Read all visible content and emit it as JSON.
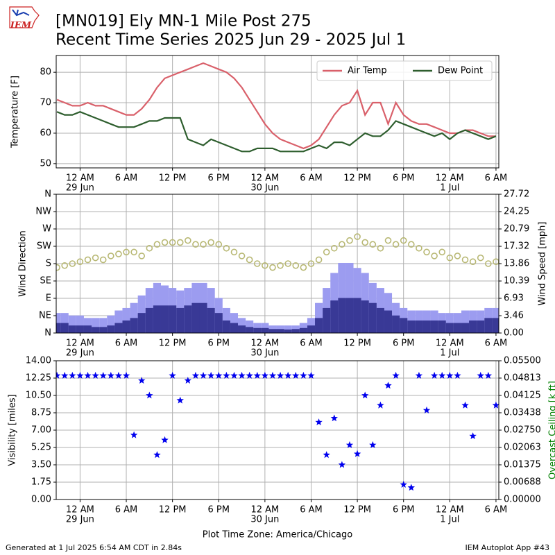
{
  "logo": "IEM",
  "title": "[MN019] Ely MN-1 Mile Post 275",
  "subtitle": "Recent Time Series 2025 Jun 29 - 2025 Jul 1",
  "footer_left": "Generated at 1 Jul 2025 6:54 AM CDT in 2.84s",
  "footer_right": "IEM Autoplot App #43",
  "chart_data": [
    {
      "type": "line",
      "ylabel": "Temperature [F]",
      "grid": true,
      "legend": "upper right",
      "xlim": [
        "2025-06-28 20:54",
        "2025-07-01 06:22"
      ],
      "xticks": [
        {
          "value": "2025-06-29 00:00",
          "label": "12 AM",
          "sublabel": "29 Jun"
        },
        {
          "value": "2025-06-29 06:00",
          "label": "6 AM"
        },
        {
          "value": "2025-06-29 12:00",
          "label": "12 PM"
        },
        {
          "value": "2025-06-29 18:00",
          "label": "6 PM"
        },
        {
          "value": "2025-06-30 00:00",
          "label": "12 AM",
          "sublabel": "30 Jun"
        },
        {
          "value": "2025-06-30 06:00",
          "label": "6 AM"
        },
        {
          "value": "2025-06-30 12:00",
          "label": "12 PM"
        },
        {
          "value": "2025-06-30 18:00",
          "label": "6 PM"
        },
        {
          "value": "2025-07-01 00:00",
          "label": "12 AM",
          "sublabel": "1 Jul"
        },
        {
          "value": "2025-07-01 06:00",
          "label": "6 AM"
        }
      ],
      "ylim": [
        48.6,
        85.5
      ],
      "yticks": [
        50,
        60,
        70,
        80
      ],
      "x": [
        "2025-06-28 21:00",
        "2025-06-28 22:00",
        "2025-06-28 23:00",
        "2025-06-29 00:00",
        "2025-06-29 01:00",
        "2025-06-29 02:00",
        "2025-06-29 03:00",
        "2025-06-29 04:00",
        "2025-06-29 05:00",
        "2025-06-29 06:00",
        "2025-06-29 07:00",
        "2025-06-29 08:00",
        "2025-06-29 09:00",
        "2025-06-29 10:00",
        "2025-06-29 11:00",
        "2025-06-29 12:00",
        "2025-06-29 13:00",
        "2025-06-29 14:00",
        "2025-06-29 15:00",
        "2025-06-29 16:00",
        "2025-06-29 17:00",
        "2025-06-29 18:00",
        "2025-06-29 19:00",
        "2025-06-29 20:00",
        "2025-06-29 21:00",
        "2025-06-29 22:00",
        "2025-06-29 23:00",
        "2025-06-30 00:00",
        "2025-06-30 01:00",
        "2025-06-30 02:00",
        "2025-06-30 03:00",
        "2025-06-30 04:00",
        "2025-06-30 05:00",
        "2025-06-30 06:00",
        "2025-06-30 07:00",
        "2025-06-30 08:00",
        "2025-06-30 09:00",
        "2025-06-30 10:00",
        "2025-06-30 11:00",
        "2025-06-30 12:00",
        "2025-06-30 13:00",
        "2025-06-30 14:00",
        "2025-06-30 15:00",
        "2025-06-30 16:00",
        "2025-06-30 17:00",
        "2025-06-30 18:00",
        "2025-06-30 19:00",
        "2025-06-30 20:00",
        "2025-06-30 21:00",
        "2025-06-30 22:00",
        "2025-06-30 23:00",
        "2025-07-01 00:00",
        "2025-07-01 01:00",
        "2025-07-01 02:00",
        "2025-07-01 03:00",
        "2025-07-01 04:00",
        "2025-07-01 05:00",
        "2025-07-01 06:00"
      ],
      "series": [
        {
          "name": "Air Temp",
          "color": "#d9606a",
          "values": [
            71,
            70,
            69,
            69,
            70,
            69,
            69,
            68,
            67,
            66,
            66,
            68,
            71,
            75,
            78,
            79,
            80,
            81,
            82,
            83,
            82,
            81,
            80,
            78,
            75,
            71,
            67,
            63,
            60,
            58,
            57,
            56,
            55,
            56,
            58,
            62,
            66,
            69,
            70,
            74,
            66,
            70,
            70,
            63,
            70,
            66,
            64,
            63,
            63,
            62,
            61,
            60,
            60,
            61,
            61,
            60,
            59,
            59
          ]
        },
        {
          "name": "Dew Point",
          "color": "#2e5e2e",
          "values": [
            67,
            66,
            66,
            67,
            66,
            65,
            64,
            63,
            62,
            62,
            62,
            63,
            64,
            64,
            65,
            65,
            65,
            58,
            57,
            56,
            58,
            57,
            56,
            55,
            54,
            54,
            55,
            55,
            55,
            54,
            54,
            54,
            54,
            55,
            56,
            55,
            57,
            57,
            56,
            58,
            60,
            59,
            59,
            61,
            64,
            63,
            62,
            61,
            60,
            59,
            60,
            58,
            60,
            61,
            60,
            59,
            58,
            59
          ]
        }
      ]
    },
    {
      "type": "wind",
      "ylabel": "Wind Direction",
      "y2label": "Wind Speed [mph]",
      "grid": true,
      "xlim": [
        "2025-06-28 20:54",
        "2025-07-01 06:22"
      ],
      "xticks": [
        {
          "value": "2025-06-29 00:00",
          "label": "12 AM",
          "sublabel": "29 Jun"
        },
        {
          "value": "2025-06-29 06:00",
          "label": "6 AM"
        },
        {
          "value": "2025-06-29 12:00",
          "label": "12 PM"
        },
        {
          "value": "2025-06-29 18:00",
          "label": "6 PM"
        },
        {
          "value": "2025-06-30 00:00",
          "label": "12 AM",
          "sublabel": "30 Jun"
        },
        {
          "value": "2025-06-30 06:00",
          "label": "6 AM"
        },
        {
          "value": "2025-06-30 12:00",
          "label": "12 PM"
        },
        {
          "value": "2025-06-30 18:00",
          "label": "6 PM"
        },
        {
          "value": "2025-07-01 00:00",
          "label": "12 AM",
          "sublabel": "1 Jul"
        },
        {
          "value": "2025-07-01 06:00",
          "label": "6 AM"
        }
      ],
      "ylim": [
        0,
        360
      ],
      "yticks": [
        {
          "value": 0,
          "label": "N"
        },
        {
          "value": 45,
          "label": "NE"
        },
        {
          "value": 90,
          "label": "E"
        },
        {
          "value": 135,
          "label": "SE"
        },
        {
          "value": 180,
          "label": "S"
        },
        {
          "value": 225,
          "label": "SW"
        },
        {
          "value": 270,
          "label": "W"
        },
        {
          "value": 315,
          "label": "NW"
        },
        {
          "value": 360,
          "label": "N"
        }
      ],
      "y2lim": [
        0,
        27.72
      ],
      "y2ticks": [
        {
          "value": 0,
          "label": "0.00"
        },
        3.46,
        6.93,
        10.39,
        13.86,
        17.32,
        20.79,
        24.25,
        27.72
      ],
      "x": [
        "2025-06-28 21:00",
        "2025-06-28 22:00",
        "2025-06-28 23:00",
        "2025-06-29 00:00",
        "2025-06-29 01:00",
        "2025-06-29 02:00",
        "2025-06-29 03:00",
        "2025-06-29 04:00",
        "2025-06-29 05:00",
        "2025-06-29 06:00",
        "2025-06-29 07:00",
        "2025-06-29 08:00",
        "2025-06-29 09:00",
        "2025-06-29 10:00",
        "2025-06-29 11:00",
        "2025-06-29 12:00",
        "2025-06-29 13:00",
        "2025-06-29 14:00",
        "2025-06-29 15:00",
        "2025-06-29 16:00",
        "2025-06-29 17:00",
        "2025-06-29 18:00",
        "2025-06-29 19:00",
        "2025-06-29 20:00",
        "2025-06-29 21:00",
        "2025-06-29 22:00",
        "2025-06-29 23:00",
        "2025-06-30 00:00",
        "2025-06-30 01:00",
        "2025-06-30 02:00",
        "2025-06-30 03:00",
        "2025-06-30 04:00",
        "2025-06-30 05:00",
        "2025-06-30 06:00",
        "2025-06-30 07:00",
        "2025-06-30 08:00",
        "2025-06-30 09:00",
        "2025-06-30 10:00",
        "2025-06-30 11:00",
        "2025-06-30 12:00",
        "2025-06-30 13:00",
        "2025-06-30 14:00",
        "2025-06-30 15:00",
        "2025-06-30 16:00",
        "2025-06-30 17:00",
        "2025-06-30 18:00",
        "2025-06-30 19:00",
        "2025-06-30 20:00",
        "2025-06-30 21:00",
        "2025-06-30 22:00",
        "2025-06-30 23:00",
        "2025-07-01 00:00",
        "2025-07-01 01:00",
        "2025-07-01 02:00",
        "2025-07-01 03:00",
        "2025-07-01 04:00",
        "2025-07-01 05:00",
        "2025-07-01 06:00"
      ],
      "series": [
        {
          "color": "#9c9cf0",
          "axis": "y2",
          "style": "bar",
          "values": [
            4,
            4,
            3.5,
            3.5,
            3,
            3,
            3,
            3.5,
            4.5,
            5,
            6,
            7.5,
            9,
            10,
            9.5,
            9,
            8.5,
            9,
            10,
            10,
            9,
            7,
            5,
            4,
            3,
            2.5,
            2,
            2,
            1.5,
            1.5,
            1.5,
            1.5,
            2,
            3,
            6,
            9,
            12,
            14,
            14,
            13,
            12,
            10,
            9,
            8,
            6,
            5,
            4.5,
            4.5,
            4.5,
            4.5,
            4,
            4,
            4,
            4.5,
            4.5,
            4.5,
            5,
            5
          ]
        },
        {
          "color": "#393996",
          "axis": "y2",
          "style": "bar",
          "values": [
            2,
            2,
            1.5,
            1.5,
            1.5,
            1.2,
            1.2,
            1.5,
            2,
            2.5,
            3,
            4,
            5,
            5.5,
            5.5,
            5.5,
            5,
            5.5,
            6,
            6,
            5,
            4,
            2.5,
            2,
            1.5,
            1.2,
            1,
            1,
            0.8,
            0.8,
            0.7,
            0.8,
            1,
            1.5,
            3,
            5,
            6.5,
            7,
            7,
            7,
            6.5,
            6,
            5,
            4.5,
            3.5,
            3,
            2.5,
            2.5,
            2.5,
            2.5,
            2.5,
            2,
            2,
            2,
            2.5,
            2.5,
            3,
            3
          ]
        },
        {
          "color": "#b8b874",
          "axis": "y",
          "style": "circle",
          "values": [
            170,
            175,
            180,
            185,
            190,
            195,
            190,
            200,
            205,
            210,
            210,
            200,
            220,
            230,
            235,
            235,
            235,
            240,
            230,
            230,
            235,
            230,
            220,
            210,
            200,
            190,
            180,
            175,
            170,
            175,
            180,
            175,
            170,
            180,
            190,
            210,
            220,
            230,
            240,
            250,
            235,
            230,
            220,
            240,
            230,
            240,
            230,
            220,
            210,
            200,
            210,
            195,
            200,
            190,
            185,
            195,
            180,
            185
          ]
        }
      ]
    },
    {
      "type": "scatter",
      "ylabel": "Visibility [miles]",
      "y2label": "Overcast Ceiling [k ft]",
      "y2color": "#008000",
      "xlabel": "Plot Time Zone: America/Chicago",
      "grid": true,
      "xlim": [
        "2025-06-28 20:54",
        "2025-07-01 06:22"
      ],
      "xticks": [
        {
          "value": "2025-06-29 00:00",
          "label": "12 AM",
          "sublabel": "29 Jun"
        },
        {
          "value": "2025-06-29 06:00",
          "label": "6 AM"
        },
        {
          "value": "2025-06-29 12:00",
          "label": "12 PM"
        },
        {
          "value": "2025-06-29 18:00",
          "label": "6 PM"
        },
        {
          "value": "2025-06-30 00:00",
          "label": "12 AM",
          "sublabel": "30 Jun"
        },
        {
          "value": "2025-06-30 06:00",
          "label": "6 AM"
        },
        {
          "value": "2025-06-30 12:00",
          "label": "12 PM"
        },
        {
          "value": "2025-06-30 18:00",
          "label": "6 PM"
        },
        {
          "value": "2025-07-01 00:00",
          "label": "12 AM",
          "sublabel": "1 Jul"
        },
        {
          "value": "2025-07-01 06:00",
          "label": "6 AM"
        }
      ],
      "ylim": [
        0,
        14
      ],
      "yticks": [
        {
          "value": 0,
          "label": "0.00"
        },
        1.75,
        {
          "value": 3.5,
          "label": "3.50"
        },
        5.25,
        {
          "value": 7,
          "label": "7.00"
        },
        8.75,
        {
          "value": 10.5,
          "label": "10.50"
        },
        12.25,
        {
          "value": 14,
          "label": "14.00"
        }
      ],
      "y2lim": [
        0,
        0.055
      ],
      "y2ticks": [
        {
          "value": 0,
          "label": "0.00000"
        },
        0.00688,
        0.01375,
        0.02063,
        {
          "value": 0.0275,
          "label": "0.02750"
        },
        0.03438,
        0.04125,
        0.04813,
        {
          "value": 0.055,
          "label": "0.05500"
        }
      ],
      "x": [
        "2025-06-28 21:00",
        "2025-06-28 22:00",
        "2025-06-28 23:00",
        "2025-06-29 00:00",
        "2025-06-29 01:00",
        "2025-06-29 02:00",
        "2025-06-29 03:00",
        "2025-06-29 04:00",
        "2025-06-29 05:00",
        "2025-06-29 06:00",
        "2025-06-29 07:00",
        "2025-06-29 08:00",
        "2025-06-29 09:00",
        "2025-06-29 10:00",
        "2025-06-29 11:00",
        "2025-06-29 12:00",
        "2025-06-29 13:00",
        "2025-06-29 14:00",
        "2025-06-29 15:00",
        "2025-06-29 16:00",
        "2025-06-29 17:00",
        "2025-06-29 18:00",
        "2025-06-29 19:00",
        "2025-06-29 20:00",
        "2025-06-29 21:00",
        "2025-06-29 22:00",
        "2025-06-29 23:00",
        "2025-06-30 00:00",
        "2025-06-30 01:00",
        "2025-06-30 02:00",
        "2025-06-30 03:00",
        "2025-06-30 04:00",
        "2025-06-30 05:00",
        "2025-06-30 06:00",
        "2025-06-30 07:00",
        "2025-06-30 08:00",
        "2025-06-30 09:00",
        "2025-06-30 10:00",
        "2025-06-30 11:00",
        "2025-06-30 12:00",
        "2025-06-30 13:00",
        "2025-06-30 14:00",
        "2025-06-30 15:00",
        "2025-06-30 16:00",
        "2025-06-30 17:00",
        "2025-06-30 18:00",
        "2025-06-30 19:00",
        "2025-06-30 20:00",
        "2025-06-30 21:00",
        "2025-06-30 22:00",
        "2025-06-30 23:00",
        "2025-07-01 00:00",
        "2025-07-01 01:00",
        "2025-07-01 02:00",
        "2025-07-01 03:00",
        "2025-07-01 04:00",
        "2025-07-01 05:00",
        "2025-07-01 06:00"
      ],
      "series": [
        {
          "color": "#0000ee",
          "style": "star",
          "values": [
            12.5,
            12.5,
            12.5,
            12.5,
            12.5,
            12.5,
            12.5,
            12.5,
            12.5,
            12.5,
            6.5,
            12,
            10.5,
            4.5,
            6,
            12.5,
            10,
            12,
            12.5,
            12.5,
            12.5,
            12.5,
            12.5,
            12.5,
            12.5,
            12.5,
            12.5,
            12.5,
            12.5,
            12.5,
            12.5,
            12.5,
            12.5,
            12.5,
            7.8,
            4.5,
            8.2,
            3.5,
            5.5,
            4.6,
            10.5,
            5.5,
            9.5,
            11.5,
            12.5,
            1.5,
            1.2,
            12.5,
            9,
            12.5,
            12.5,
            12.5,
            12.5,
            9.5,
            6.4,
            12.5,
            12.5,
            9.5
          ]
        }
      ]
    }
  ]
}
